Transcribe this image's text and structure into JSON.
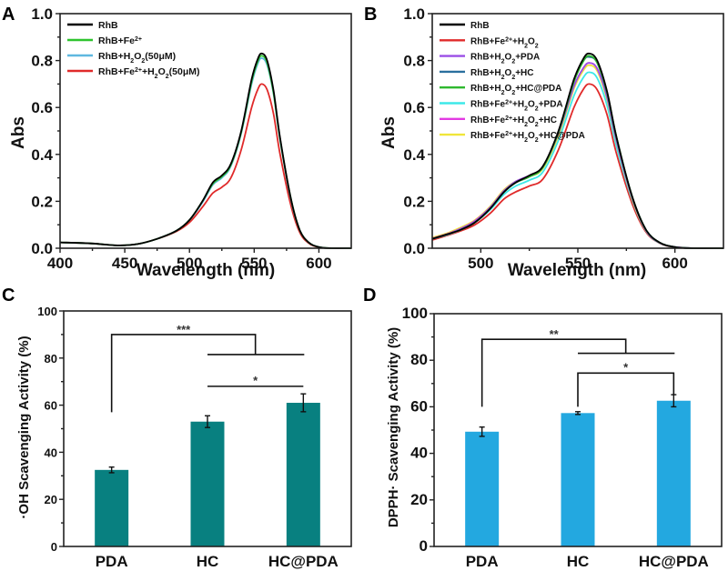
{
  "chart_data": [
    {
      "id": "A",
      "panel_label": "A",
      "type": "line",
      "title": "",
      "xlabel": "Wavelength (nm)",
      "ylabel": "Abs",
      "xlim": [
        400,
        625
      ],
      "ylim": [
        0.0,
        1.0
      ],
      "xticks": [
        400,
        450,
        500,
        550,
        600
      ],
      "xtick_labels": [
        "400",
        "450",
        "500",
        "550",
        "600"
      ],
      "yticks": [
        0.0,
        0.2,
        0.4,
        0.6,
        0.8,
        1.0
      ],
      "ytick_labels": [
        "0.0",
        "0.2",
        "0.4",
        "0.6",
        "0.8",
        "1.0"
      ],
      "grid": false,
      "legend_position": "top-left",
      "x": [
        400,
        425,
        445,
        460,
        475,
        490,
        500,
        510,
        518,
        525,
        532,
        540,
        548,
        553,
        556,
        560,
        565,
        570,
        578,
        585,
        592,
        600,
        610,
        625
      ],
      "series": [
        {
          "name": "RhB",
          "label_parts": [
            [
              "RhB",
              ""
            ]
          ],
          "color": "#000000",
          "values": [
            0.025,
            0.02,
            0.012,
            0.018,
            0.04,
            0.075,
            0.12,
            0.2,
            0.28,
            0.31,
            0.36,
            0.5,
            0.72,
            0.81,
            0.83,
            0.8,
            0.67,
            0.47,
            0.22,
            0.08,
            0.025,
            0.005,
            0.0,
            0.0
          ]
        },
        {
          "name": "RhB+Fe2+",
          "label_parts": [
            [
              "RhB+Fe",
              ""
            ],
            [
              "2+",
              "sup"
            ]
          ],
          "color": "#2ec42e",
          "values": [
            0.025,
            0.02,
            0.012,
            0.018,
            0.04,
            0.075,
            0.12,
            0.2,
            0.275,
            0.305,
            0.355,
            0.495,
            0.71,
            0.8,
            0.82,
            0.79,
            0.66,
            0.465,
            0.22,
            0.08,
            0.025,
            0.005,
            0.0,
            0.0
          ]
        },
        {
          "name": "RhB+H2O2(50μM)",
          "label_parts": [
            [
              "RhB+H",
              ""
            ],
            [
              "2",
              "sub"
            ],
            [
              "O",
              ""
            ],
            [
              "2",
              "sub"
            ],
            [
              "(50μM)",
              ""
            ]
          ],
          "color": "#5fb8e0",
          "values": [
            0.025,
            0.02,
            0.012,
            0.018,
            0.04,
            0.075,
            0.12,
            0.195,
            0.27,
            0.3,
            0.35,
            0.49,
            0.7,
            0.79,
            0.81,
            0.78,
            0.655,
            0.46,
            0.215,
            0.08,
            0.025,
            0.005,
            0.0,
            0.0
          ]
        },
        {
          "name": "RhB+Fe2+ +H2O2(50μM)",
          "label_parts": [
            [
              "RhB+Fe",
              ""
            ],
            [
              "2+",
              "sup"
            ],
            [
              "+H",
              ""
            ],
            [
              "2",
              "sub"
            ],
            [
              "O",
              ""
            ],
            [
              "2",
              "sub"
            ],
            [
              "(50μM)",
              ""
            ]
          ],
          "color": "#e02a2a",
          "values": [
            0.025,
            0.02,
            0.012,
            0.018,
            0.04,
            0.072,
            0.11,
            0.175,
            0.235,
            0.26,
            0.3,
            0.42,
            0.6,
            0.68,
            0.7,
            0.675,
            0.57,
            0.4,
            0.19,
            0.07,
            0.022,
            0.004,
            0.0,
            0.0
          ]
        }
      ]
    },
    {
      "id": "B",
      "panel_label": "B",
      "type": "line",
      "title": "",
      "xlabel": "Wavelength (nm)",
      "ylabel": "Abs",
      "xlim": [
        475,
        625
      ],
      "ylim": [
        0.0,
        1.0
      ],
      "xticks": [
        500,
        550,
        600
      ],
      "xtick_labels": [
        "500",
        "550",
        "600"
      ],
      "yticks": [
        0.0,
        0.2,
        0.4,
        0.6,
        0.8,
        1.0
      ],
      "ytick_labels": [
        "0.0",
        "0.2",
        "0.4",
        "0.6",
        "0.8",
        "1.0"
      ],
      "grid": false,
      "legend_position": "top-left",
      "x": [
        475,
        483,
        490,
        497,
        505,
        512,
        518,
        525,
        532,
        540,
        548,
        553,
        556,
        560,
        565,
        570,
        578,
        585,
        592,
        600,
        610,
        625
      ],
      "series": [
        {
          "name": "RhB",
          "label_parts": [
            [
              "RhB",
              ""
            ]
          ],
          "color": "#000000",
          "values": [
            0.04,
            0.06,
            0.08,
            0.11,
            0.17,
            0.24,
            0.28,
            0.31,
            0.35,
            0.5,
            0.72,
            0.81,
            0.83,
            0.8,
            0.67,
            0.47,
            0.22,
            0.08,
            0.025,
            0.005,
            0.0,
            0.0
          ]
        },
        {
          "name": "RhB+Fe2+ +H2O2",
          "label_parts": [
            [
              "RhB+Fe",
              ""
            ],
            [
              "2+",
              "sup"
            ],
            [
              "+H",
              ""
            ],
            [
              "2",
              "sub"
            ],
            [
              "O",
              ""
            ],
            [
              "2",
              "sub"
            ]
          ],
          "color": "#e02a2a",
          "values": [
            0.035,
            0.055,
            0.075,
            0.1,
            0.15,
            0.21,
            0.24,
            0.265,
            0.295,
            0.42,
            0.6,
            0.68,
            0.7,
            0.675,
            0.57,
            0.4,
            0.19,
            0.07,
            0.022,
            0.004,
            0.0,
            0.0
          ]
        },
        {
          "name": "RhB+H2O2+PDA",
          "label_parts": [
            [
              "RhB+H",
              ""
            ],
            [
              "2",
              "sub"
            ],
            [
              "O",
              ""
            ],
            [
              "2",
              "sub"
            ],
            [
              "+PDA",
              ""
            ]
          ],
          "color": "#9b4ee6",
          "values": [
            0.04,
            0.06,
            0.085,
            0.115,
            0.175,
            0.245,
            0.285,
            0.31,
            0.345,
            0.49,
            0.69,
            0.77,
            0.79,
            0.765,
            0.645,
            0.455,
            0.215,
            0.078,
            0.024,
            0.005,
            0.0,
            0.0
          ]
        },
        {
          "name": "RhB+H2O2+HC",
          "label_parts": [
            [
              "RhB+H",
              ""
            ],
            [
              "2",
              "sub"
            ],
            [
              "O",
              ""
            ],
            [
              "2",
              "sub"
            ],
            [
              "+HC",
              ""
            ]
          ],
          "color": "#2a6f9e",
          "values": [
            0.04,
            0.06,
            0.08,
            0.11,
            0.17,
            0.24,
            0.28,
            0.305,
            0.345,
            0.495,
            0.71,
            0.8,
            0.815,
            0.79,
            0.66,
            0.465,
            0.22,
            0.08,
            0.025,
            0.005,
            0.0,
            0.0
          ]
        },
        {
          "name": "RhB+H2O2+HC@PDA",
          "label_parts": [
            [
              "RhB+H",
              ""
            ],
            [
              "2",
              "sub"
            ],
            [
              "O",
              ""
            ],
            [
              "2",
              "sub"
            ],
            [
              "+HC@PDA",
              ""
            ]
          ],
          "color": "#2eb82e",
          "values": [
            0.04,
            0.06,
            0.08,
            0.11,
            0.17,
            0.24,
            0.28,
            0.305,
            0.345,
            0.495,
            0.71,
            0.8,
            0.82,
            0.79,
            0.665,
            0.47,
            0.22,
            0.08,
            0.025,
            0.005,
            0.0,
            0.0
          ]
        },
        {
          "name": "RhB+Fe2+ +H2O2+PDA",
          "label_parts": [
            [
              "RhB+Fe",
              ""
            ],
            [
              "2+",
              "sup"
            ],
            [
              "+H",
              ""
            ],
            [
              "2",
              "sub"
            ],
            [
              "O",
              ""
            ],
            [
              "2",
              "sub"
            ],
            [
              "+PDA",
              ""
            ]
          ],
          "color": "#3de8e8",
          "values": [
            0.04,
            0.058,
            0.08,
            0.11,
            0.165,
            0.23,
            0.265,
            0.29,
            0.325,
            0.46,
            0.65,
            0.73,
            0.75,
            0.725,
            0.61,
            0.43,
            0.205,
            0.075,
            0.023,
            0.005,
            0.0,
            0.0
          ]
        },
        {
          "name": "RhB+Fe2+ +H2O2+HC",
          "label_parts": [
            [
              "RhB+Fe",
              ""
            ],
            [
              "2+",
              "sup"
            ],
            [
              "+H",
              ""
            ],
            [
              "2",
              "sub"
            ],
            [
              "O",
              ""
            ],
            [
              "2",
              "sub"
            ],
            [
              "+HC",
              ""
            ]
          ],
          "color": "#e23ae2",
          "values": [
            0.042,
            0.062,
            0.085,
            0.117,
            0.175,
            0.245,
            0.28,
            0.305,
            0.345,
            0.49,
            0.69,
            0.77,
            0.79,
            0.765,
            0.645,
            0.455,
            0.215,
            0.078,
            0.024,
            0.005,
            0.0,
            0.0
          ]
        },
        {
          "name": "RhB+Fe2+ +H2O2+HC@PDA",
          "label_parts": [
            [
              "RhB+Fe",
              ""
            ],
            [
              "2+",
              "sup"
            ],
            [
              "+H",
              ""
            ],
            [
              "2",
              "sub"
            ],
            [
              "O",
              ""
            ],
            [
              "2",
              "sub"
            ],
            [
              "+HC@PDA",
              ""
            ]
          ],
          "color": "#f0e63a",
          "values": [
            0.045,
            0.065,
            0.09,
            0.12,
            0.18,
            0.25,
            0.285,
            0.305,
            0.34,
            0.48,
            0.68,
            0.76,
            0.78,
            0.755,
            0.635,
            0.45,
            0.21,
            0.077,
            0.024,
            0.005,
            0.0,
            0.0
          ]
        }
      ]
    },
    {
      "id": "C",
      "panel_label": "C",
      "type": "bar",
      "title": "",
      "xlabel": "",
      "ylabel": "·OH Scavenging Activity (%)",
      "categories": [
        "PDA",
        "HC",
        "HC@PDA"
      ],
      "values": [
        32.5,
        53,
        61
      ],
      "errors": [
        1.2,
        2.5,
        3.8
      ],
      "bar_color": "#088080",
      "ylim": [
        0,
        100
      ],
      "yticks": [
        0,
        20,
        40,
        60,
        80,
        100
      ],
      "ytick_labels": [
        "0",
        "20",
        "40",
        "60",
        "80",
        "100"
      ],
      "grid": false,
      "significance": [
        {
          "label": "***",
          "from": "PDA",
          "to": [
            "HC",
            "HC@PDA"
          ],
          "level": 90,
          "group_level": 81.5,
          "from_drop": 57
        },
        {
          "label": "*",
          "from": "HC",
          "to": "HC@PDA",
          "level": 68
        }
      ]
    },
    {
      "id": "D",
      "panel_label": "D",
      "type": "bar",
      "title": "",
      "xlabel": "",
      "ylabel": "DPPH· Scavenging Activity (%)",
      "categories": [
        "PDA",
        "HC",
        "HC@PDA"
      ],
      "values": [
        49.3,
        57.3,
        62.6
      ],
      "errors": [
        2.0,
        0.6,
        2.6
      ],
      "bar_color": "#23a8e0",
      "ylim": [
        0,
        100
      ],
      "yticks": [
        0,
        20,
        40,
        60,
        80,
        100
      ],
      "ytick_labels": [
        "0",
        "20",
        "40",
        "60",
        "80",
        "100"
      ],
      "grid": false,
      "significance": [
        {
          "label": "**",
          "from": "PDA",
          "to": [
            "HC",
            "HC@PDA"
          ],
          "level": 89,
          "group_level": 83,
          "from_drop": 60
        },
        {
          "label": "*",
          "from": "HC",
          "to": "HC@PDA",
          "level": 74.5,
          "from_drop": 60,
          "to_drop": 65
        }
      ]
    }
  ]
}
